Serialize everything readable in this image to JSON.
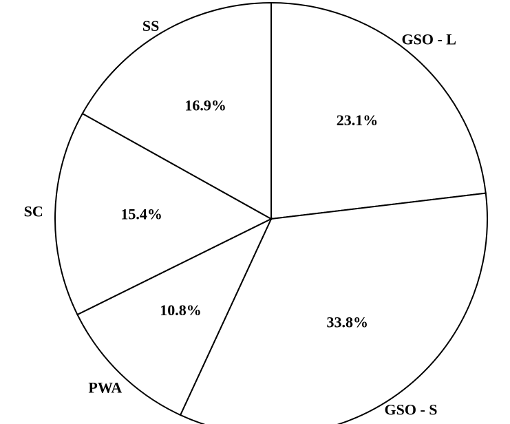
{
  "chart_data": {
    "type": "pie",
    "categories": [
      "GSO - L",
      "GSO - S",
      "PWA",
      "SC",
      "SS"
    ],
    "values": [
      23.1,
      33.8,
      10.8,
      15.4,
      16.9
    ],
    "value_labels": [
      "23.1%",
      "33.8%",
      "10.8%",
      "15.4%",
      "16.9%"
    ],
    "color": "#ffffff"
  }
}
